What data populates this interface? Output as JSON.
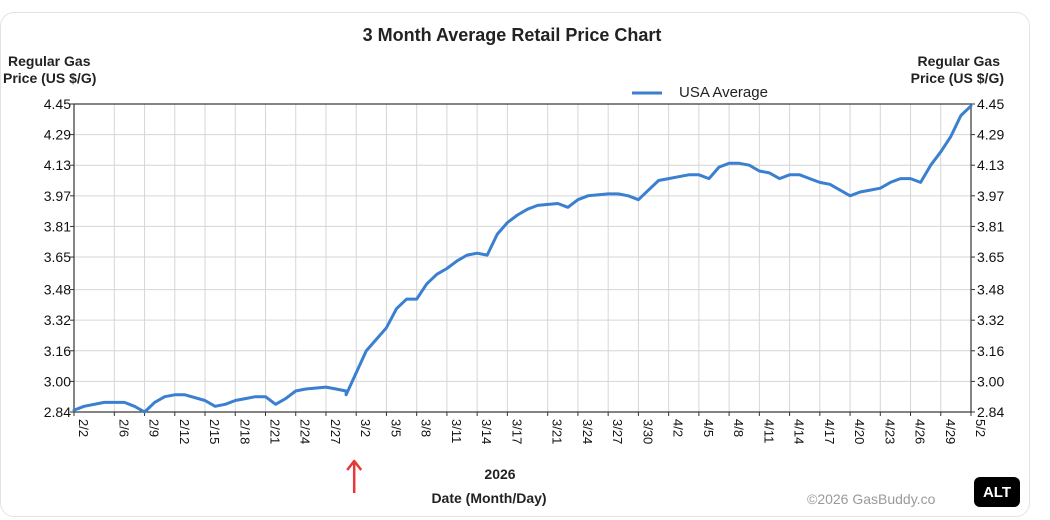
{
  "chart_data": {
    "type": "line",
    "title": "3 Month Average Retail Price Chart",
    "ylabel_left_line1": "Regular Gas",
    "ylabel_left_line2": "Price (US $/G)",
    "ylabel_right_line1": "Regular Gas",
    "ylabel_right_line2": "Price (US $/G)",
    "xlabel_year": "2026",
    "xlabel": "Date (Month/Day)",
    "legend_position": "top-right",
    "grid": true,
    "ylim": [
      2.84,
      4.45
    ],
    "yticks": [
      "4.45",
      "4.29",
      "4.13",
      "3.97",
      "3.81",
      "3.65",
      "3.48",
      "3.32",
      "3.16",
      "3.00",
      "2.84"
    ],
    "xticks": [
      "2/2",
      "2/6",
      "2/9",
      "2/12",
      "2/15",
      "2/18",
      "2/21",
      "2/24",
      "2/27",
      "3/2",
      "3/5",
      "3/8",
      "3/11",
      "3/14",
      "3/17",
      "3/21",
      "3/24",
      "3/27",
      "3/30",
      "4/2",
      "4/5",
      "4/8",
      "4/11",
      "4/14",
      "4/17",
      "4/20",
      "4/23",
      "4/26",
      "4/29",
      "5/2"
    ],
    "series": [
      {
        "name": "USA Average",
        "color": "#3a7fd0",
        "x": [
          "2/2",
          "2/3",
          "2/5",
          "2/7",
          "2/8",
          "2/9",
          "2/10",
          "2/11",
          "2/12",
          "2/13",
          "2/15",
          "2/16",
          "2/17",
          "2/18",
          "2/19",
          "2/20",
          "2/21",
          "2/22",
          "2/23",
          "2/24",
          "2/25",
          "2/27",
          "2/28",
          "2/29",
          "3/1",
          "3/3",
          "3/4",
          "3/5",
          "3/6",
          "3/7",
          "3/8",
          "3/9",
          "3/10",
          "3/11",
          "3/12",
          "3/13",
          "3/14",
          "3/15",
          "3/16",
          "3/17",
          "3/18",
          "3/19",
          "3/20",
          "3/22",
          "3/23",
          "3/24",
          "3/25",
          "3/27",
          "3/28",
          "3/29",
          "3/30",
          "3/31",
          "4/1",
          "4/2",
          "4/3",
          "4/4",
          "4/5",
          "4/6",
          "4/7",
          "4/8",
          "4/9",
          "4/10",
          "4/11",
          "4/12",
          "4/13",
          "4/14",
          "4/15",
          "4/16",
          "4/17",
          "4/18",
          "4/19",
          "4/20",
          "4/21",
          "4/22",
          "4/23",
          "4/24",
          "4/25",
          "4/26",
          "4/27",
          "4/28",
          "4/29",
          "4/30",
          "5/1",
          "5/2"
        ],
        "values": [
          2.85,
          2.87,
          2.89,
          2.89,
          2.87,
          2.84,
          2.89,
          2.92,
          2.93,
          2.93,
          2.9,
          2.87,
          2.88,
          2.9,
          2.91,
          2.92,
          2.92,
          2.88,
          2.91,
          2.95,
          2.96,
          2.97,
          2.96,
          2.95,
          2.93,
          3.16,
          3.22,
          3.28,
          3.38,
          3.43,
          3.43,
          3.51,
          3.56,
          3.59,
          3.63,
          3.66,
          3.67,
          3.66,
          3.77,
          3.83,
          3.87,
          3.9,
          3.92,
          3.93,
          3.91,
          3.95,
          3.97,
          3.98,
          3.98,
          3.97,
          3.95,
          4.0,
          4.05,
          4.06,
          4.07,
          4.08,
          4.08,
          4.06,
          4.12,
          4.14,
          4.14,
          4.13,
          4.1,
          4.09,
          4.06,
          4.08,
          4.08,
          4.06,
          4.04,
          4.03,
          4.0,
          3.97,
          3.99,
          4.0,
          4.01,
          4.04,
          4.06,
          4.06,
          4.04,
          4.13,
          4.2,
          4.28,
          4.39,
          4.44
        ]
      }
    ],
    "annotation_arrow_at": "3/2",
    "annotation_arrow_color": "#e53935"
  },
  "credit": "©2026 GasBuddy.co",
  "alt_badge": "ALT"
}
